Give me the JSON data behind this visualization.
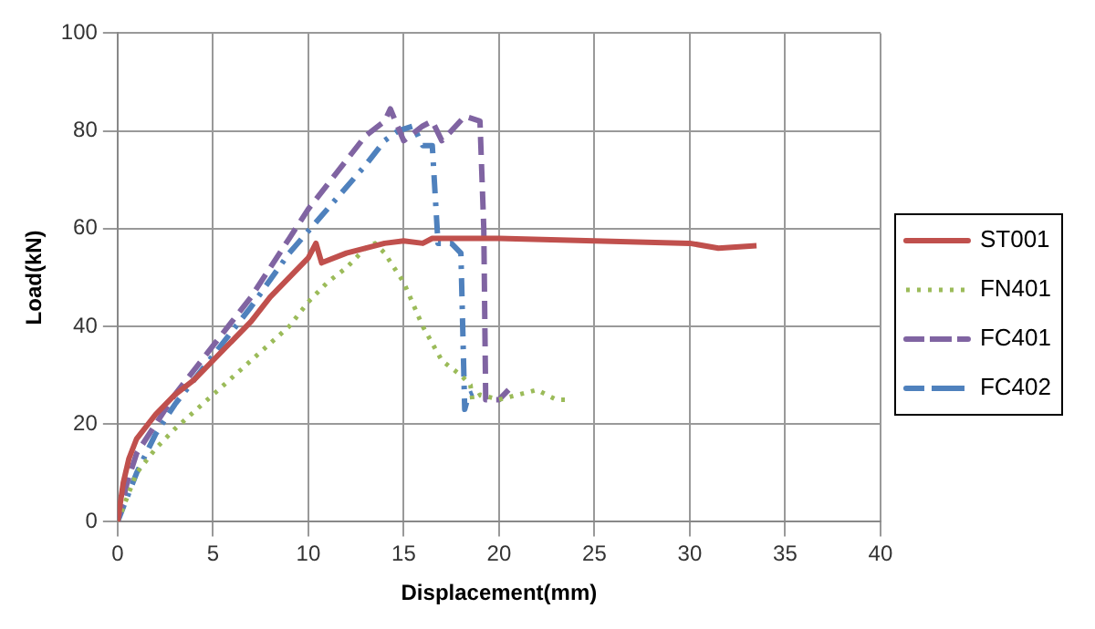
{
  "chart_data": {
    "type": "line",
    "xlabel": "Displacement(mm)",
    "ylabel": "Load(kN)",
    "xlim": [
      0,
      40
    ],
    "xticks": [
      0,
      5,
      10,
      15,
      20,
      25,
      30,
      35,
      40
    ],
    "ylim": [
      0,
      100
    ],
    "yticks": [
      0,
      20,
      40,
      60,
      80,
      100
    ],
    "grid": true,
    "legend": "right",
    "marker": "none",
    "series": [
      {
        "name": "ST001",
        "color": "#c0504d",
        "line_style": "solid",
        "x": [
          0,
          0.3,
          0.6,
          1,
          2,
          3,
          4,
          5,
          6,
          7,
          8,
          9,
          10,
          10.4,
          10.7,
          12,
          14,
          15,
          16,
          16.5,
          20,
          25,
          30,
          31.5,
          33.5
        ],
        "values": [
          0,
          8,
          13,
          17,
          22,
          26,
          29,
          33,
          37,
          41,
          46,
          50,
          54,
          57,
          53,
          55,
          57,
          57.5,
          57,
          58,
          58,
          57.5,
          57,
          56,
          56.5
        ]
      },
      {
        "name": "FN401",
        "color": "#9bbb59",
        "line_style": "dotted",
        "x": [
          0,
          1,
          2,
          3,
          5,
          7,
          9,
          10,
          11,
          12,
          13,
          13.5,
          14,
          15,
          16,
          17,
          18,
          18.5,
          18.6,
          19,
          20,
          21,
          22,
          22.5,
          23,
          23.5
        ],
        "values": [
          0,
          10,
          15,
          19,
          26,
          33,
          40,
          45,
          49,
          52,
          56,
          57,
          55,
          49,
          40,
          33,
          30,
          28,
          25,
          26,
          25,
          26,
          27,
          26,
          25,
          25
        ]
      },
      {
        "name": "FC401",
        "color": "#8064a2",
        "line_style": "dashed",
        "x": [
          0,
          0.5,
          1,
          2,
          3,
          4,
          5,
          6,
          7,
          8,
          9,
          10,
          11,
          12,
          13,
          14,
          14.3,
          15,
          16,
          16.5,
          17,
          17.5,
          18.2,
          19,
          19.2,
          19.3,
          20,
          20.5
        ],
        "values": [
          0,
          8,
          14,
          20,
          26,
          31,
          36,
          41,
          46,
          52,
          58,
          64,
          69,
          74,
          79,
          82,
          84.5,
          78,
          81,
          82,
          78,
          80,
          83,
          82,
          60,
          25,
          25,
          27
        ]
      },
      {
        "name": "FC402",
        "color": "#4f81bd",
        "line_style": "dashdot",
        "x": [
          0,
          1,
          2,
          3,
          5,
          7,
          9,
          11,
          13,
          14,
          14.7,
          15.5,
          16,
          16.5,
          16.8,
          17.5,
          18,
          18.2,
          18.4,
          19
        ],
        "values": [
          0,
          10,
          18,
          24,
          34,
          44,
          55,
          64,
          73,
          78,
          80,
          81,
          77,
          77,
          57,
          57,
          55,
          23,
          26,
          27
        ]
      }
    ]
  }
}
